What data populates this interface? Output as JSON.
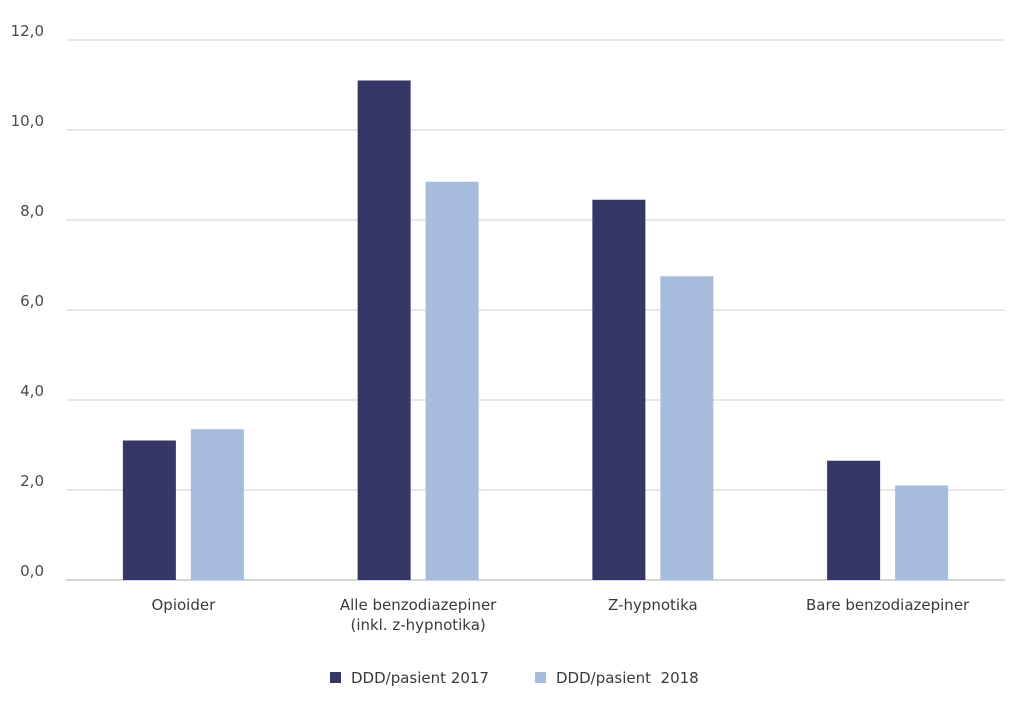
{
  "chart_data": {
    "type": "bar",
    "categories": [
      [
        "Opioider"
      ],
      [
        "Alle benzodiazepiner",
        "(inkl. z-hypnotika)"
      ],
      [
        "Z-hypnotika"
      ],
      [
        "Bare benzodiazepiner"
      ]
    ],
    "series": [
      {
        "name": "DDD/pasient 2017",
        "color": "#363766",
        "values": [
          3.1,
          11.1,
          8.45,
          2.65
        ]
      },
      {
        "name": "DDD/pasient  2018",
        "color": "#a6bcdc",
        "values": [
          3.35,
          8.85,
          6.75,
          2.1
        ]
      }
    ],
    "ylim": [
      0,
      12
    ],
    "yticks": [
      "0,0",
      "2,0",
      "4,0",
      "6,0",
      "8,0",
      "10,0",
      "12,0"
    ],
    "grid": true,
    "legend_position": "bottom-center"
  }
}
